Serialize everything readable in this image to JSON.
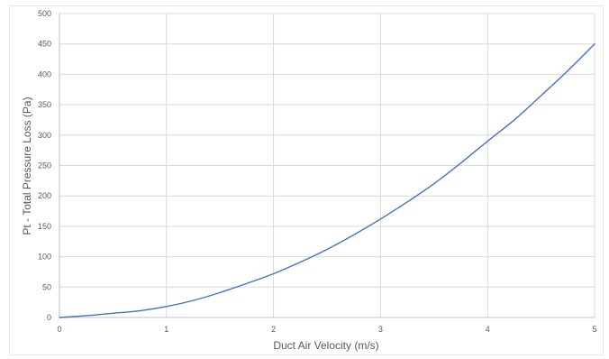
{
  "chart_data": {
    "type": "line",
    "title": "",
    "xlabel": "Duct Air Velocity (m/s)",
    "ylabel": "Pt - Total Pressure Loss (Pa)",
    "xlim": [
      0,
      5
    ],
    "ylim": [
      0,
      500
    ],
    "x_ticks": [
      "0",
      "1",
      "2",
      "3",
      "4",
      "5"
    ],
    "y_ticks": [
      "0",
      "50",
      "100",
      "150",
      "200",
      "250",
      "300",
      "350",
      "400",
      "450",
      "500"
    ],
    "grid": true,
    "legend": "none",
    "series": [
      {
        "color": "#4472c4",
        "x": [
          0,
          0.25,
          0.5,
          0.75,
          1,
          1.25,
          1.5,
          1.75,
          2,
          2.25,
          2.5,
          2.75,
          3,
          3.25,
          3.5,
          3.75,
          4,
          4.25,
          4.5,
          4.75,
          5
        ],
        "y": [
          0,
          3,
          7,
          11,
          18,
          28,
          41,
          56,
          72,
          91,
          112,
          136,
          162,
          190,
          220,
          254,
          290,
          325,
          365,
          406,
          450
        ]
      }
    ]
  }
}
